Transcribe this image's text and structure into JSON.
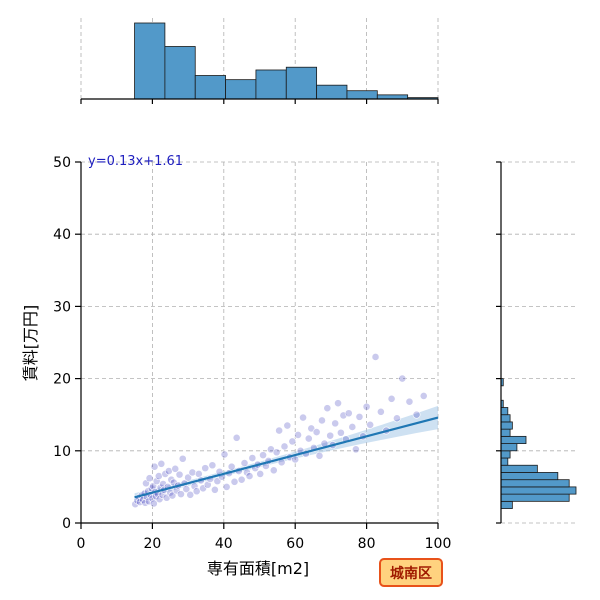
{
  "chart_data": {
    "type": "scatter",
    "xlabel": "専有面積[m2]",
    "ylabel": "賃料[万円]",
    "xlim": [
      0,
      100
    ],
    "ylim": [
      0,
      50
    ],
    "xticks": [
      0,
      20,
      40,
      60,
      80,
      100
    ],
    "yticks": [
      0,
      10,
      20,
      30,
      40,
      50
    ],
    "grid": true,
    "annotation": "y=0.13x+1.61",
    "badge": "城南区",
    "colors": {
      "points": "#4040c0",
      "regression_line": "#1f77b4",
      "confidence_band": "#a6c8e8",
      "histogram": "#5299c9",
      "badge_fill": "#ffd27f",
      "badge_border": "#e8521a",
      "badge_text": "#a01b00",
      "equation": "#1f1fbf"
    },
    "regression": {
      "slope": 0.13,
      "intercept": 1.61,
      "x_range": [
        15,
        100
      ]
    },
    "x_histogram": {
      "bin_edges": [
        15,
        23.5,
        32,
        40.5,
        49,
        57.5,
        66,
        74.5,
        83,
        91.5,
        100
      ],
      "counts": [
        55,
        38,
        17,
        14,
        21,
        23,
        10,
        6,
        3,
        1
      ]
    },
    "y_histogram": {
      "bin_edges": [
        2,
        3,
        4,
        5,
        6,
        7,
        8,
        9,
        10,
        11,
        12,
        13,
        14,
        15,
        16,
        17,
        18,
        19,
        20,
        21,
        22,
        23
      ],
      "counts": [
        5,
        30,
        33,
        30,
        25,
        16,
        3,
        4,
        7,
        11,
        4,
        5,
        4,
        3,
        1,
        0,
        0,
        1,
        0,
        0,
        0
      ]
    },
    "points": [
      [
        15.2,
        2.6
      ],
      [
        15.8,
        3.1
      ],
      [
        16.3,
        3.5
      ],
      [
        16.5,
        2.9
      ],
      [
        17.0,
        3.8
      ],
      [
        17.4,
        3.2
      ],
      [
        17.8,
        4.1
      ],
      [
        18.0,
        2.8
      ],
      [
        18.2,
        5.5
      ],
      [
        18.5,
        3.6
      ],
      [
        18.8,
        4.4
      ],
      [
        19.0,
        3.0
      ],
      [
        19.2,
        6.2
      ],
      [
        19.5,
        3.9
      ],
      [
        19.8,
        4.8
      ],
      [
        20.0,
        3.4
      ],
      [
        20.2,
        5.1
      ],
      [
        20.4,
        2.7
      ],
      [
        20.6,
        7.8
      ],
      [
        20.8,
        4.3
      ],
      [
        21.0,
        3.7
      ],
      [
        21.2,
        5.8
      ],
      [
        21.5,
        4.0
      ],
      [
        21.8,
        6.5
      ],
      [
        22.0,
        3.3
      ],
      [
        22.3,
        4.9
      ],
      [
        22.5,
        8.2
      ],
      [
        22.8,
        3.9
      ],
      [
        23.0,
        5.4
      ],
      [
        23.3,
        4.6
      ],
      [
        23.6,
        6.8
      ],
      [
        24.0,
        3.5
      ],
      [
        24.3,
        5.0
      ],
      [
        24.6,
        7.2
      ],
      [
        25.0,
        4.2
      ],
      [
        25.3,
        6.0
      ],
      [
        25.6,
        3.8
      ],
      [
        26.0,
        5.6
      ],
      [
        26.4,
        7.5
      ],
      [
        26.8,
        4.5
      ],
      [
        27.2,
        5.2
      ],
      [
        27.6,
        6.7
      ],
      [
        28.0,
        4.0
      ],
      [
        28.5,
        8.9
      ],
      [
        29.0,
        5.5
      ],
      [
        29.5,
        4.7
      ],
      [
        30.0,
        6.3
      ],
      [
        30.6,
        3.9
      ],
      [
        31.2,
        7.0
      ],
      [
        31.8,
        5.1
      ],
      [
        32.4,
        4.4
      ],
      [
        33.0,
        6.8
      ],
      [
        33.6,
        5.9
      ],
      [
        34.2,
        4.8
      ],
      [
        34.8,
        7.6
      ],
      [
        35.5,
        5.3
      ],
      [
        36.2,
        6.1
      ],
      [
        36.8,
        8.0
      ],
      [
        37.5,
        4.6
      ],
      [
        38.2,
        5.8
      ],
      [
        38.8,
        7.1
      ],
      [
        39.5,
        6.4
      ],
      [
        40.2,
        9.5
      ],
      [
        40.8,
        5.0
      ],
      [
        41.5,
        6.9
      ],
      [
        42.2,
        7.8
      ],
      [
        43.0,
        5.7
      ],
      [
        43.6,
        11.8
      ],
      [
        44.2,
        7.2
      ],
      [
        45.0,
        6.0
      ],
      [
        45.8,
        8.3
      ],
      [
        46.5,
        7.0
      ],
      [
        47.2,
        6.5
      ],
      [
        48.0,
        9.0
      ],
      [
        48.8,
        7.6
      ],
      [
        49.5,
        8.1
      ],
      [
        50.2,
        6.8
      ],
      [
        51.0,
        9.4
      ],
      [
        51.8,
        7.9
      ],
      [
        52.5,
        8.6
      ],
      [
        53.2,
        10.2
      ],
      [
        54.0,
        7.3
      ],
      [
        54.8,
        9.8
      ],
      [
        55.5,
        12.8
      ],
      [
        56.2,
        8.4
      ],
      [
        57.0,
        10.6
      ],
      [
        57.8,
        13.5
      ],
      [
        58.5,
        9.1
      ],
      [
        59.2,
        11.3
      ],
      [
        60.0,
        8.8
      ],
      [
        60.8,
        12.2
      ],
      [
        61.5,
        10.0
      ],
      [
        62.2,
        14.6
      ],
      [
        63.0,
        9.6
      ],
      [
        63.8,
        11.7
      ],
      [
        64.5,
        13.1
      ],
      [
        65.2,
        10.4
      ],
      [
        66.0,
        12.6
      ],
      [
        66.8,
        9.3
      ],
      [
        67.5,
        14.2
      ],
      [
        68.2,
        11.0
      ],
      [
        69.0,
        15.9
      ],
      [
        69.8,
        12.1
      ],
      [
        70.5,
        10.8
      ],
      [
        71.2,
        13.8
      ],
      [
        72.0,
        16.6
      ],
      [
        72.8,
        12.5
      ],
      [
        73.5,
        14.9
      ],
      [
        74.2,
        11.6
      ],
      [
        75.0,
        15.2
      ],
      [
        76.0,
        13.3
      ],
      [
        77.0,
        10.2
      ],
      [
        78.0,
        14.7
      ],
      [
        79.0,
        12.0
      ],
      [
        80.0,
        16.1
      ],
      [
        81.0,
        13.6
      ],
      [
        82.5,
        23.0
      ],
      [
        84.0,
        15.4
      ],
      [
        85.5,
        12.8
      ],
      [
        87.0,
        17.2
      ],
      [
        88.5,
        14.5
      ],
      [
        90.0,
        20.0
      ],
      [
        92.0,
        16.8
      ],
      [
        94.0,
        15.0
      ],
      [
        96.0,
        17.6
      ]
    ]
  }
}
